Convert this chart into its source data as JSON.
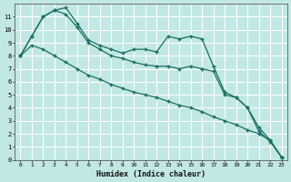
{
  "xlabel": "Humidex (Indice chaleur)",
  "bg_color": "#c2e8e4",
  "grid_color": "#ffffff",
  "line_color": "#1a6e64",
  "xlim": [
    -0.5,
    23.5
  ],
  "ylim": [
    0,
    12
  ],
  "xticks": [
    0,
    1,
    2,
    3,
    4,
    5,
    6,
    7,
    8,
    9,
    10,
    11,
    12,
    13,
    14,
    15,
    16,
    17,
    18,
    19,
    20,
    21,
    22,
    23
  ],
  "yticks": [
    0,
    1,
    2,
    3,
    4,
    5,
    6,
    7,
    8,
    9,
    10,
    11
  ],
  "series1_x": [
    0,
    1,
    2,
    3,
    4,
    5,
    6,
    7,
    8,
    9,
    10,
    11,
    12,
    13,
    14,
    15,
    16,
    17,
    18,
    19,
    20,
    21,
    22,
    23
  ],
  "series1_y": [
    8.0,
    9.5,
    11.0,
    11.5,
    11.7,
    10.5,
    9.2,
    8.8,
    8.5,
    8.2,
    8.5,
    8.5,
    8.3,
    9.5,
    9.3,
    9.5,
    9.3,
    7.2,
    5.2,
    4.8,
    4.0,
    2.2,
    1.4,
    0.2
  ],
  "series2_x": [
    0,
    1,
    2,
    3,
    4,
    5,
    6,
    7,
    8,
    9,
    10,
    11,
    12,
    13,
    14,
    15,
    16,
    17,
    18,
    19,
    20,
    21,
    22,
    23
  ],
  "series2_y": [
    8.0,
    9.5,
    11.0,
    11.5,
    11.2,
    10.2,
    9.0,
    8.5,
    8.0,
    7.8,
    7.5,
    7.3,
    7.2,
    7.2,
    7.0,
    7.2,
    7.0,
    6.8,
    5.0,
    4.8,
    4.0,
    2.5,
    1.5,
    0.2
  ],
  "series3_x": [
    0,
    1,
    2,
    3,
    4,
    5,
    6,
    7,
    8,
    9,
    10,
    11,
    12,
    13,
    14,
    15,
    16,
    17,
    18,
    19,
    20,
    21,
    22,
    23
  ],
  "series3_y": [
    8.0,
    8.8,
    8.5,
    8.0,
    7.5,
    7.0,
    6.5,
    6.2,
    5.8,
    5.5,
    5.2,
    5.0,
    4.8,
    4.5,
    4.2,
    4.0,
    3.7,
    3.3,
    3.0,
    2.7,
    2.3,
    2.0,
    1.5,
    0.2
  ]
}
